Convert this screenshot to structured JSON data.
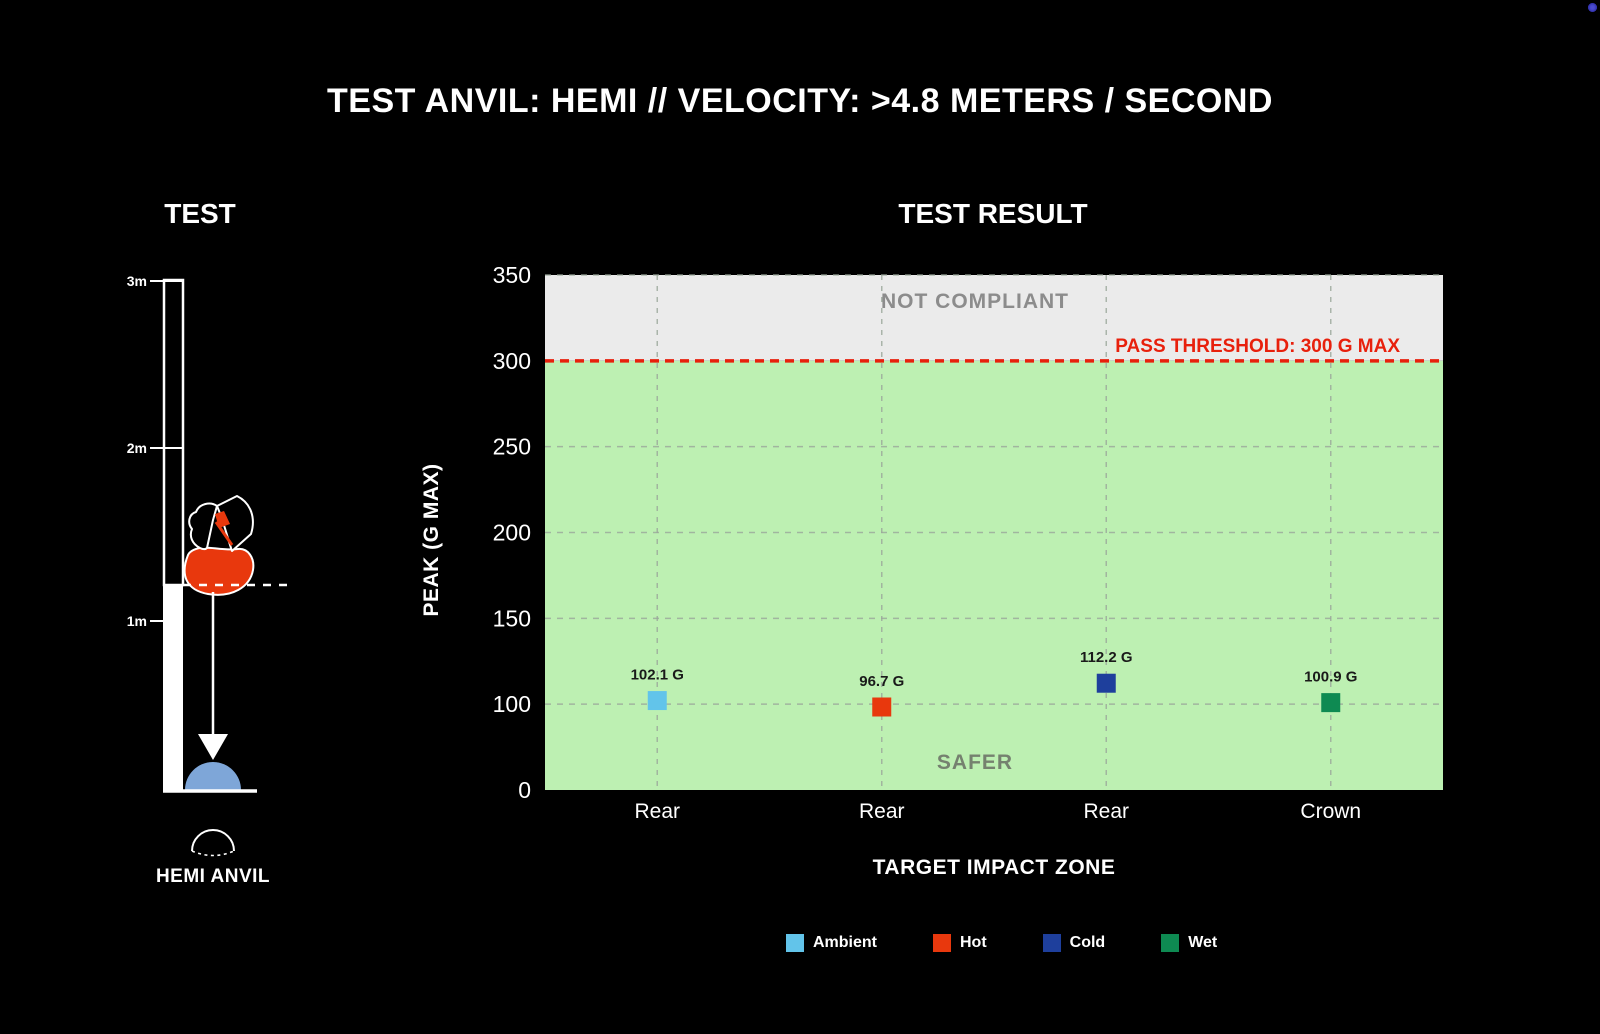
{
  "page": {
    "title": "TEST ANVIL: HEMI // VELOCITY: >4.8 METERS / SECOND"
  },
  "test_panel": {
    "heading": "TEST",
    "height_marks": [
      "3m",
      "2m",
      "1m"
    ],
    "anvil_label": "HEMI ANVIL",
    "helmet_color": "#e8380d",
    "anvil_color": "#7ea6d8"
  },
  "chart_data": {
    "type": "scatter",
    "title": "TEST RESULT",
    "xlabel": "TARGET IMPACT ZONE",
    "ylabel": "PEAK (G MAX)",
    "ylim": [
      0,
      350
    ],
    "y_ticks": [
      0,
      100,
      150,
      200,
      250,
      300,
      350
    ],
    "categories": [
      "Rear",
      "Rear",
      "Rear",
      "Crown"
    ],
    "grid": true,
    "legend_position": "bottom",
    "threshold": {
      "value": 300,
      "label": "PASS THRESHOLD: 300 G MAX",
      "color": "#e8200c"
    },
    "zones": [
      {
        "label": "NOT COMPLIANT",
        "from": 300,
        "to": 350,
        "fill": "#ebebeb",
        "label_color": "#8c8c8c"
      },
      {
        "label": "SAFER",
        "from": 0,
        "to": 300,
        "fill": "#bdf0b2",
        "label_color": "#75816f"
      }
    ],
    "series": [
      {
        "name": "Ambient",
        "color": "#62c4ea",
        "points": [
          {
            "category_index": 0,
            "value": 102.1,
            "label": "102.1 G"
          }
        ]
      },
      {
        "name": "Hot",
        "color": "#e8380d",
        "points": [
          {
            "category_index": 1,
            "value": 96.7,
            "label": "96.7 G"
          }
        ]
      },
      {
        "name": "Cold",
        "color": "#1e3f9c",
        "points": [
          {
            "category_index": 2,
            "value": 112.2,
            "label": "112.2 G"
          }
        ]
      },
      {
        "name": "Wet",
        "color": "#0e8a52",
        "points": [
          {
            "category_index": 3,
            "value": 100.9,
            "label": "100.9 G"
          }
        ]
      }
    ]
  }
}
